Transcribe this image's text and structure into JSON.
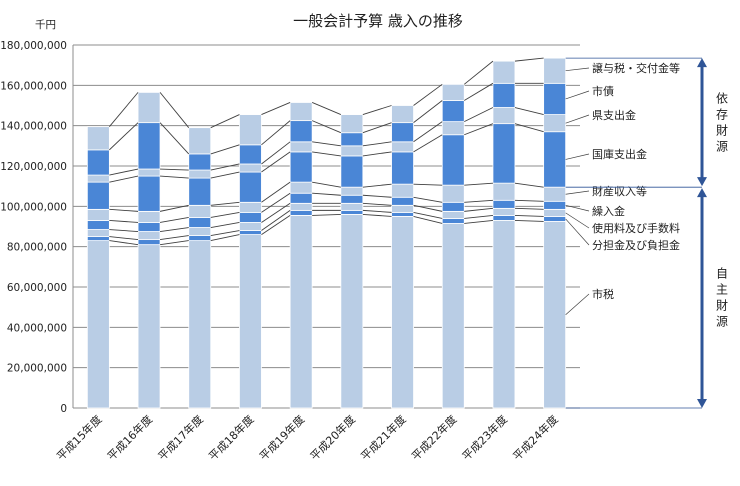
{
  "chart_data": {
    "type": "bar",
    "stacked": true,
    "title": "一般会計予算 歳入の推移",
    "unit_label": "千円",
    "ylim": [
      0,
      180000000
    ],
    "yticks": [
      0,
      20000000,
      40000000,
      60000000,
      80000000,
      100000000,
      120000000,
      140000000,
      160000000,
      180000000
    ],
    "ytick_labels": [
      "0",
      "20,000,000",
      "40,000,000",
      "60,000,000",
      "80,000,000",
      "100,000,000",
      "120,000,000",
      "140,000,000",
      "160,000,000",
      "180,000,000"
    ],
    "grid": true,
    "categories": [
      "平成15年度",
      "平成16年度",
      "平成17年度",
      "平成18年度",
      "平成19年度",
      "平成20年度",
      "平成21年度",
      "平成22年度",
      "平成23年度",
      "平成24年度"
    ],
    "series": [
      {
        "name": "市税",
        "values": [
          83000000,
          81000000,
          83000000,
          86000000,
          95500000,
          96000000,
          95000000,
          91500000,
          93000000,
          92500000
        ]
      },
      {
        "name": "分担金及び負担金",
        "values": [
          2000000,
          2500000,
          2500000,
          2000000,
          2500000,
          2000000,
          2000000,
          2500000,
          2500000,
          2500000
        ]
      },
      {
        "name": "使用料及び手数料",
        "values": [
          3500000,
          4000000,
          4000000,
          4000000,
          3500000,
          3500000,
          3500000,
          3500000,
          3500000,
          3500000
        ]
      },
      {
        "name": "繰入金",
        "values": [
          4500000,
          4500000,
          5000000,
          5000000,
          5000000,
          4000000,
          4000000,
          4500000,
          4000000,
          4000000
        ]
      },
      {
        "name": "財産収入等",
        "values": [
          5500000,
          5500000,
          6000000,
          5000000,
          5500000,
          4000000,
          6500000,
          8500000,
          8500000,
          7000000
        ]
      },
      {
        "name": "国庫支出金",
        "values": [
          13500000,
          17500000,
          13500000,
          15000000,
          15000000,
          15500000,
          16000000,
          25000000,
          29500000,
          27500000
        ]
      },
      {
        "name": "県支出金",
        "values": [
          3500000,
          3500000,
          4000000,
          4000000,
          5000000,
          5000000,
          5000000,
          6500000,
          8000000,
          8500000
        ]
      },
      {
        "name": "市債",
        "values": [
          12500000,
          23000000,
          8000000,
          9500000,
          10500000,
          6500000,
          9500000,
          10500000,
          12000000,
          15500000
        ]
      },
      {
        "name": "譲与税・交付金等",
        "values": [
          11500000,
          15000000,
          13000000,
          15000000,
          9000000,
          9000000,
          8500000,
          8000000,
          11000000,
          12500000
        ]
      }
    ],
    "colors": [
      "#b9cde5",
      "#4a86d6"
    ],
    "groups": [
      {
        "label": "依存財源",
        "series": [
          "譲与税・交付金等",
          "市債",
          "県支出金",
          "国庫支出金"
        ]
      },
      {
        "label": "自主財源",
        "series": [
          "財産収入等",
          "繰入金",
          "使用料及び手数料",
          "分担金及び負担金",
          "市税"
        ]
      }
    ],
    "group_arrow_color": "#2f5597"
  }
}
